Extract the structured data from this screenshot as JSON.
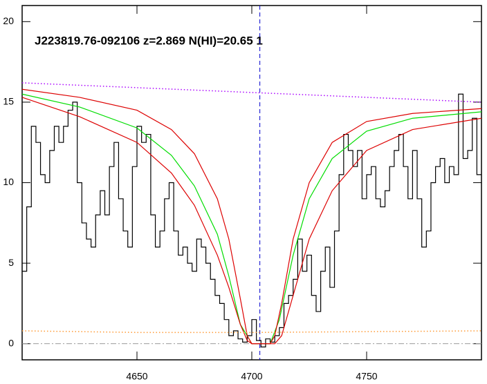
{
  "chart_data": {
    "type": "line",
    "title": "J223819.76-092106 z=2.869 N(HI)=20.65 1",
    "xlim": [
      4600,
      4800
    ],
    "xticks": [
      4650,
      4700,
      4750
    ],
    "ylim": [
      -1,
      21
    ],
    "yticks": [
      0,
      5,
      10,
      15,
      20
    ],
    "vline": 4703.5,
    "vline_color": "#0000cc",
    "hline": 0,
    "hline_color": "#999999",
    "series": [
      {
        "color": "#000000",
        "style": "step",
        "x": [
          4601,
          4603,
          4605,
          4607,
          4609,
          4611,
          4613,
          4615,
          4617,
          4619,
          4621,
          4623,
          4625,
          4627,
          4629,
          4631,
          4633,
          4635,
          4637,
          4639,
          4641,
          4643,
          4645,
          4647,
          4649,
          4651,
          4653,
          4655,
          4657,
          4659,
          4661,
          4663,
          4665,
          4667,
          4669,
          4671,
          4673,
          4675,
          4677,
          4679,
          4681,
          4683,
          4685,
          4687,
          4689,
          4691,
          4693,
          4695,
          4697,
          4699,
          4701,
          4703,
          4705,
          4707,
          4709,
          4711,
          4713,
          4715,
          4717,
          4719,
          4721,
          4723,
          4725,
          4727,
          4729,
          4731,
          4733,
          4735,
          4737,
          4739,
          4741,
          4743,
          4745,
          4747,
          4749,
          4751,
          4753,
          4755,
          4757,
          4759,
          4761,
          4763,
          4765,
          4767,
          4769,
          4771,
          4773,
          4775,
          4777,
          4779,
          4781,
          4783,
          4785,
          4787,
          4789,
          4791,
          4793,
          4795,
          4797,
          4799
        ],
        "values": [
          4.5,
          8.5,
          13.5,
          12.5,
          10.5,
          10,
          12,
          13.5,
          12.5,
          13.5,
          14.5,
          15,
          10,
          7.5,
          6.5,
          6,
          8,
          9.5,
          8,
          11,
          12.5,
          9,
          7,
          6,
          11,
          13.5,
          12.5,
          13,
          8,
          6,
          7,
          9,
          10,
          7,
          5.5,
          6,
          5,
          4.5,
          6.5,
          6,
          5,
          4,
          3,
          2.5,
          1.5,
          0.5,
          0.8,
          0.3,
          0.1,
          0.5,
          1.5,
          0.2,
          -0.2,
          0.3,
          0.1,
          0.5,
          1,
          2.5,
          3,
          4,
          6.5,
          4.5,
          5.5,
          3,
          2,
          4.5,
          6,
          3.5,
          7,
          10.5,
          13,
          12,
          11,
          12,
          9,
          10.5,
          11,
          9,
          8.5,
          9.5,
          11,
          12,
          13,
          11,
          9,
          12,
          9,
          6,
          7,
          10,
          11,
          11.5,
          10,
          11,
          10.5,
          15.5,
          11.5,
          12,
          14,
          10.5
        ]
      },
      {
        "color": "#00dd00",
        "style": "solid",
        "x": [
          4600,
          4625,
          4650,
          4665,
          4675,
          4685,
          4690,
          4695,
          4700,
          4708,
          4712,
          4718,
          4725,
          4735,
          4750,
          4770,
          4800
        ],
        "values": [
          15.5,
          14.7,
          13.4,
          11.7,
          9.8,
          6.8,
          4.2,
          1.2,
          0,
          0,
          1.5,
          5.5,
          9,
          11.5,
          13.2,
          14,
          14.4
        ]
      },
      {
        "color": "#dd0000",
        "style": "solid",
        "x": [
          4600,
          4625,
          4650,
          4665,
          4675,
          4685,
          4690,
          4695,
          4698,
          4700,
          4708,
          4710,
          4713,
          4718,
          4725,
          4735,
          4750,
          4770,
          4800
        ],
        "values": [
          15.8,
          15.3,
          14.5,
          13.3,
          11.8,
          9,
          6.5,
          2.8,
          0.5,
          0,
          0,
          0.5,
          2.5,
          6.5,
          10,
          12.5,
          13.8,
          14.3,
          14.6
        ]
      },
      {
        "color": "#dd0000",
        "style": "solid",
        "x": [
          4600,
          4625,
          4650,
          4665,
          4675,
          4685,
          4690,
          4695,
          4698,
          4700,
          4710,
          4713,
          4718,
          4725,
          4735,
          4750,
          4770,
          4800
        ],
        "values": [
          15.3,
          14.1,
          12.5,
          10.6,
          8.6,
          5.5,
          3.5,
          1.2,
          0.2,
          0,
          0,
          0.5,
          3,
          6.5,
          9.5,
          12,
          13.3,
          14
        ]
      },
      {
        "color": "#aa00ff",
        "style": "dotted",
        "x": [
          4600,
          4800
        ],
        "values": [
          16.2,
          15
        ]
      },
      {
        "color": "#ff9933",
        "style": "dotted",
        "x": [
          4600,
          4650,
          4700,
          4750,
          4800
        ],
        "values": [
          0.8,
          0.7,
          0.7,
          0.75,
          0.8
        ]
      }
    ]
  }
}
